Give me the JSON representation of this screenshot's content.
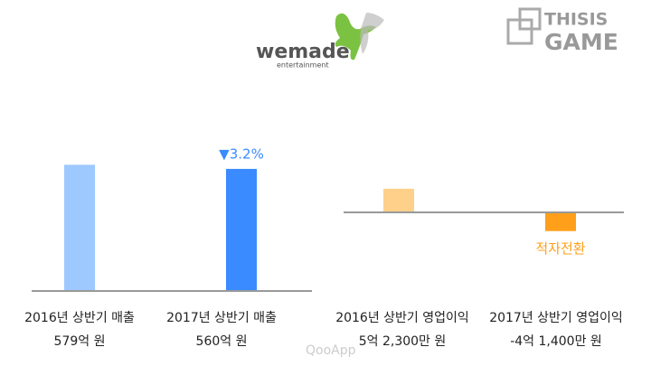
{
  "chart_data": [
    {
      "type": "bar",
      "categories": [
        "2016년 상반기 매출",
        "2017년 상반기 매출"
      ],
      "values": [
        579,
        560
      ],
      "value_labels": [
        "579억 원",
        "560억 원"
      ],
      "colors": [
        "#9ec9ff",
        "#3a8bff"
      ],
      "annotation": "▼3.2%",
      "annotation_color": "#3a8bff",
      "ylim": [
        0,
        800
      ]
    },
    {
      "type": "bar",
      "categories": [
        "2016년 상반기 영업이익",
        "2017년 상반기 영업이익"
      ],
      "values": [
        5.23,
        -4.14
      ],
      "value_labels": [
        "5억 2,300만 원",
        "-4억 1,400만 원"
      ],
      "colors": [
        "#ffd08a",
        "#ff9f1a"
      ],
      "annotation": "적자전환",
      "annotation_color": "#ff9f1a",
      "ylim": [
        -10,
        10
      ]
    }
  ],
  "logos": {
    "wemade_main": "wemade",
    "wemade_sub": "entertainment",
    "thisis": "THISIS",
    "game": "GAME",
    "watermark": "QooApp"
  }
}
